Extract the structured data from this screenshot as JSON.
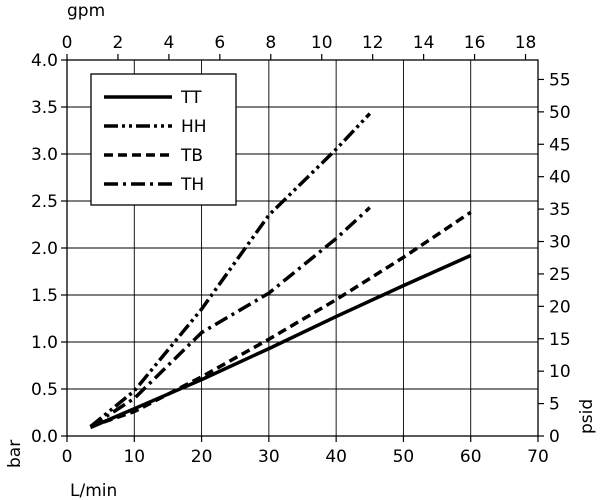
{
  "chart_data": {
    "type": "line",
    "title": "",
    "xlabel": "L/min",
    "ylabel": "bar",
    "xlabel_top": "gpm",
    "ylabel_right": "psid",
    "xlim": [
      0,
      70
    ],
    "ylim": [
      0,
      4.0
    ],
    "x2lim": [
      0,
      18.49
    ],
    "y2lim": [
      0,
      58.0
    ],
    "grid": true,
    "legend_position": "top-left",
    "x_ticks": [
      "0",
      "10",
      "20",
      "30",
      "40",
      "50",
      "60",
      "70"
    ],
    "y_ticks": [
      "0.0",
      "0.5",
      "1.0",
      "1.5",
      "2.0",
      "2.5",
      "3.0",
      "3.5",
      "4.0"
    ],
    "x2_ticks": [
      "0",
      "2",
      "4",
      "6",
      "8",
      "10",
      "12",
      "14",
      "16",
      "18"
    ],
    "y2_ticks": [
      "0",
      "5",
      "10",
      "15",
      "20",
      "25",
      "30",
      "35",
      "40",
      "45",
      "50",
      "55"
    ],
    "series": [
      {
        "name": "TT",
        "style": "solid",
        "color": "#000000",
        "x": [
          3.5,
          10,
          20,
          30,
          40,
          50,
          60
        ],
        "y": [
          0.09,
          0.29,
          0.6,
          0.93,
          1.27,
          1.6,
          1.92
        ]
      },
      {
        "name": "HH",
        "style": "dash-dot-dot",
        "color": "#000000",
        "x": [
          3.5,
          10,
          20,
          30,
          40,
          45
        ],
        "y": [
          0.1,
          0.48,
          1.35,
          2.35,
          3.05,
          3.43
        ]
      },
      {
        "name": "TB",
        "style": "dashed",
        "color": "#000000",
        "x": [
          3.5,
          10,
          20,
          30,
          40,
          50,
          60
        ],
        "y": [
          0.1,
          0.26,
          0.63,
          1.03,
          1.45,
          1.9,
          2.38
        ]
      },
      {
        "name": "TH",
        "style": "dash-dot",
        "color": "#000000",
        "x": [
          3.5,
          10,
          20,
          30,
          40,
          45
        ],
        "y": [
          0.1,
          0.4,
          1.1,
          1.52,
          2.1,
          2.43
        ]
      }
    ]
  }
}
